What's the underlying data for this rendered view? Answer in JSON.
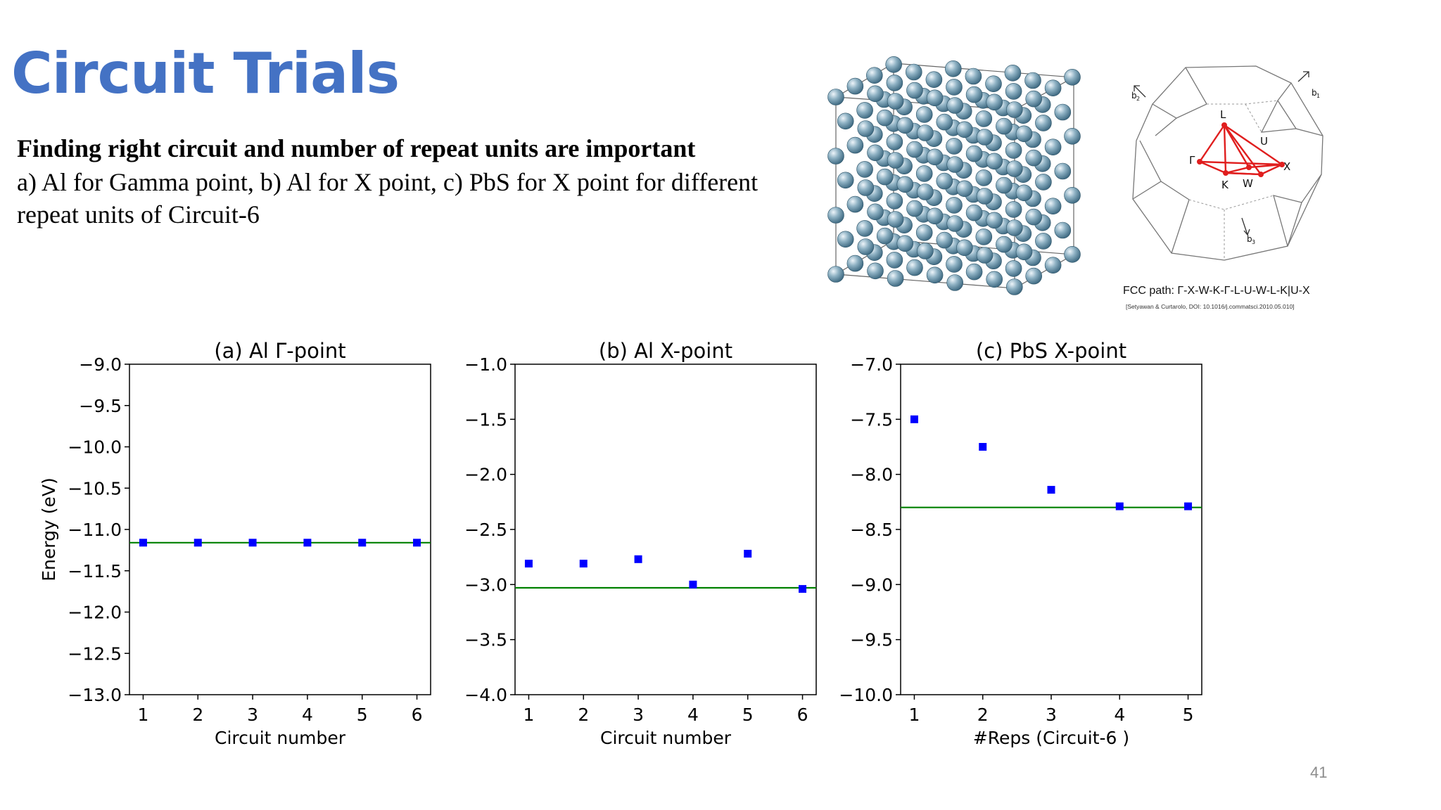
{
  "slide": {
    "title": "Circuit Trials",
    "subtitle": "Finding right circuit and number of repeat units are important",
    "description": "a) Al for Gamma point, b) Al for X point, c) PbS for X point for different repeat units of Circuit-6",
    "page_number": "41"
  },
  "bz_figure": {
    "caption": "FCC path: Γ-X-W-K-Γ-L-U-W-L-K|U-X",
    "citation": "[Setyawan & Curtarolo, DOI: 10.1016/j.commatsci.2010.05.010]",
    "labels": {
      "L": "L",
      "U": "U",
      "X": "X",
      "K": "K",
      "W": "W",
      "Gamma": "Γ",
      "b1": "b",
      "b2": "b",
      "b3": "b",
      "sub1": "1",
      "sub2": "2",
      "sub3": "3"
    },
    "path_color": "#e01e1e"
  },
  "chart_data": [
    {
      "type": "scatter",
      "title": "(a) Al Γ-point",
      "xlabel": "Circuit number",
      "ylabel": "Energy (eV)",
      "xlim": [
        0.75,
        6.25
      ],
      "ylim": [
        -13.0,
        -9.0
      ],
      "xticks": [
        1,
        2,
        3,
        4,
        5,
        6
      ],
      "yticks": [
        -13.0,
        -12.5,
        -12.0,
        -11.5,
        -11.0,
        -10.5,
        -10.0,
        -9.5,
        -9.0
      ],
      "xtick_labels": [
        "1",
        "2",
        "3",
        "4",
        "5",
        "6"
      ],
      "ytick_labels": [
        "−13.0",
        "−12.5",
        "−12.0",
        "−11.5",
        "−11.0",
        "−10.5",
        "−10.0",
        "−9.5",
        "−9.0"
      ],
      "x": [
        1,
        2,
        3,
        4,
        5,
        6
      ],
      "y": [
        -11.16,
        -11.16,
        -11.16,
        -11.16,
        -11.16,
        -11.16
      ],
      "reference_line": -11.16,
      "marker_color": "#0000ff",
      "line_color": "#008000"
    },
    {
      "type": "scatter",
      "title": "(b) Al X-point",
      "xlabel": "Circuit number",
      "ylabel": "",
      "xlim": [
        0.75,
        6.25
      ],
      "ylim": [
        -4.0,
        -1.0
      ],
      "xticks": [
        1,
        2,
        3,
        4,
        5,
        6
      ],
      "yticks": [
        -4.0,
        -3.5,
        -3.0,
        -2.5,
        -2.0,
        -1.5,
        -1.0
      ],
      "xtick_labels": [
        "1",
        "2",
        "3",
        "4",
        "5",
        "6"
      ],
      "ytick_labels": [
        "−4.0",
        "−3.5",
        "−3.0",
        "−2.5",
        "−2.0",
        "−1.5",
        "−1.0"
      ],
      "x": [
        1,
        2,
        3,
        4,
        5,
        6
      ],
      "y": [
        -2.81,
        -2.81,
        -2.77,
        -3.0,
        -2.72,
        -3.04
      ],
      "reference_line": -3.03,
      "marker_color": "#0000ff",
      "line_color": "#008000"
    },
    {
      "type": "scatter",
      "title": "(c) PbS X-point",
      "xlabel": "#Reps (Circuit-6 )",
      "ylabel": "",
      "xlim": [
        0.8,
        5.2
      ],
      "ylim": [
        -10.0,
        -7.0
      ],
      "xticks": [
        1,
        2,
        3,
        4,
        5
      ],
      "yticks": [
        -10.0,
        -9.5,
        -9.0,
        -8.5,
        -8.0,
        -7.5,
        -7.0
      ],
      "xtick_labels": [
        "1",
        "2",
        "3",
        "4",
        "5"
      ],
      "ytick_labels": [
        "−10.0",
        "−9.5",
        "−9.0",
        "−8.5",
        "−8.0",
        "−7.5",
        "−7.0"
      ],
      "x": [
        1,
        2,
        3,
        4,
        5
      ],
      "y": [
        -7.5,
        -7.75,
        -8.14,
        -8.29,
        -8.29
      ],
      "reference_line": -8.3,
      "marker_color": "#0000ff",
      "line_color": "#008000"
    }
  ]
}
